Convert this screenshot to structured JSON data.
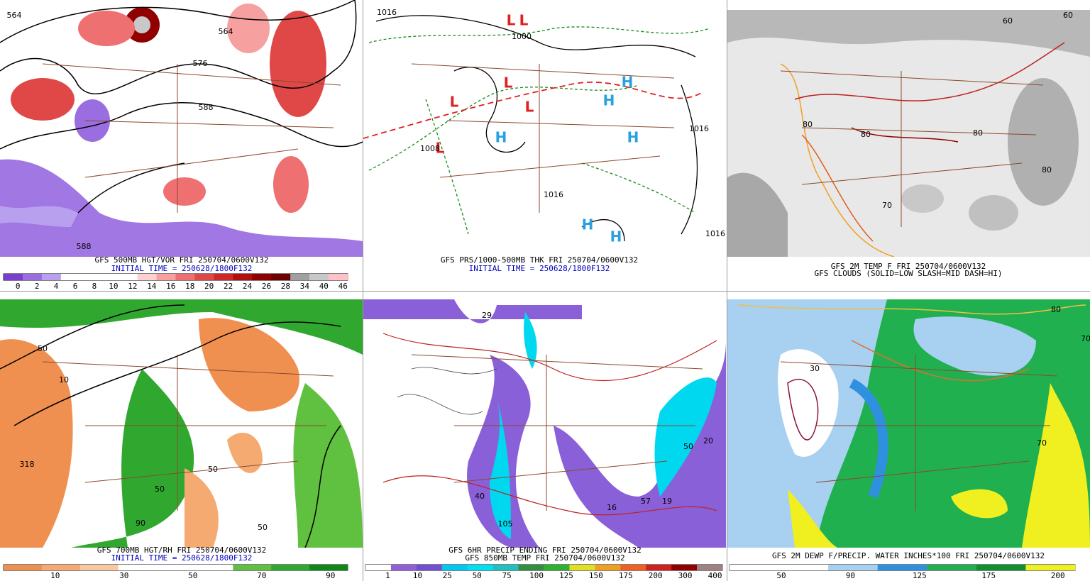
{
  "panels": [
    {
      "captions": [
        {
          "text": "GFS 500MB HGT/VOR FRI 250704/0600V132",
          "color": "#000000"
        },
        {
          "text": "INITIAL TIME = 250628/1800F132",
          "color": "#0000c0"
        }
      ],
      "colorbar": {
        "colors": [
          "#7a3fd0",
          "#9a6ee0",
          "#b9a0ee",
          "#ffffff",
          "#ffffff",
          "#ffffff",
          "#ffffff",
          "#ffd0d0",
          "#f7a0a0",
          "#ef7070",
          "#e04848",
          "#d02828",
          "#b01010",
          "#900000",
          "#700000",
          "#a0a0a0",
          "#c8c8c8",
          "#ffc0c8"
        ],
        "labels": [
          "0",
          "2",
          "4",
          "6",
          "8",
          "10",
          "12",
          "14",
          "16",
          "18",
          "20",
          "22",
          "24",
          "26",
          "28",
          "34",
          "40",
          "46"
        ]
      },
      "map_labels": [
        "564",
        "564",
        "576",
        "588",
        "588"
      ]
    },
    {
      "captions": [
        {
          "text": "GFS PRS/1000-500MB THK FRI 250704/0600V132",
          "color": "#000000"
        },
        {
          "text": "INITIAL TIME = 250628/1800F132",
          "color": "#0000c0"
        }
      ],
      "map_labels": [
        "L",
        "L",
        "L",
        "L",
        "L",
        "L",
        "H",
        "H",
        "H",
        "H",
        "H",
        "H",
        "1016",
        "1000",
        "1008",
        "1016",
        "1016",
        "1016"
      ]
    },
    {
      "captions": [
        {
          "text": "GFS 2M TEMP F FRI 250704/0600V132",
          "color": "#000000"
        },
        {
          "text": "GFS CLOUDS (SOLID=LOW SLASH=MID DASH=HI)",
          "color": "#000000"
        }
      ],
      "map_labels": [
        "60",
        "80",
        "80",
        "70",
        "80",
        "60",
        "80"
      ]
    },
    {
      "captions": [
        {
          "text": "GFS 700MB HGT/RH FRI 250704/0600V132",
          "color": "#000000"
        },
        {
          "text": "INITIAL TIME = 250628/1800F132",
          "color": "#0000c0"
        }
      ],
      "colorbar": {
        "colors": [
          "#f09050",
          "#f4aa70",
          "#f8c8a0",
          "#ffffff",
          "#ffffff",
          "#ffffff",
          "#60c040",
          "#30a830",
          "#108818"
        ],
        "labels": [
          "10",
          "30",
          "50",
          "70",
          "90"
        ]
      },
      "map_labels": [
        "50",
        "10",
        "318",
        "50",
        "50",
        "90",
        "50"
      ]
    },
    {
      "captions": [
        {
          "text": "GFS 6HR PRECIP ENDING FRI 250704/0600V132",
          "color": "#000000"
        },
        {
          "text": "GFS 850MB TEMP FRI 250704/0600V132",
          "color": "#000000"
        }
      ],
      "colorbar": {
        "colors": [
          "#ffffff",
          "#9060d8",
          "#7050d0",
          "#00c8f0",
          "#00e0f0",
          "#20c0c0",
          "#309040",
          "#30b030",
          "#e0e020",
          "#f0a020",
          "#f06020",
          "#d02020",
          "#900000",
          "#a08080"
        ],
        "labels": [
          "1",
          "10",
          "25",
          "50",
          "75",
          "100",
          "125",
          "150",
          "175",
          "200",
          "300",
          "400"
        ]
      },
      "map_labels": [
        "29",
        "40",
        "50",
        "20",
        "16",
        "57",
        "19",
        "105"
      ]
    },
    {
      "captions": [
        {
          "text": "GFS 2M DEWP F/PRECIP. WATER INCHES*100 FRI 250704/0600V132",
          "color": "#000000"
        }
      ],
      "colorbar": {
        "colors": [
          "#ffffff",
          "#ffffff",
          "#a8d0f0",
          "#3090e0",
          "#20b050",
          "#109030",
          "#f0f020"
        ],
        "labels": [
          "50",
          "90",
          "125",
          "175",
          "200"
        ]
      },
      "map_labels": [
        "30",
        "70",
        "80",
        "70"
      ]
    }
  ]
}
